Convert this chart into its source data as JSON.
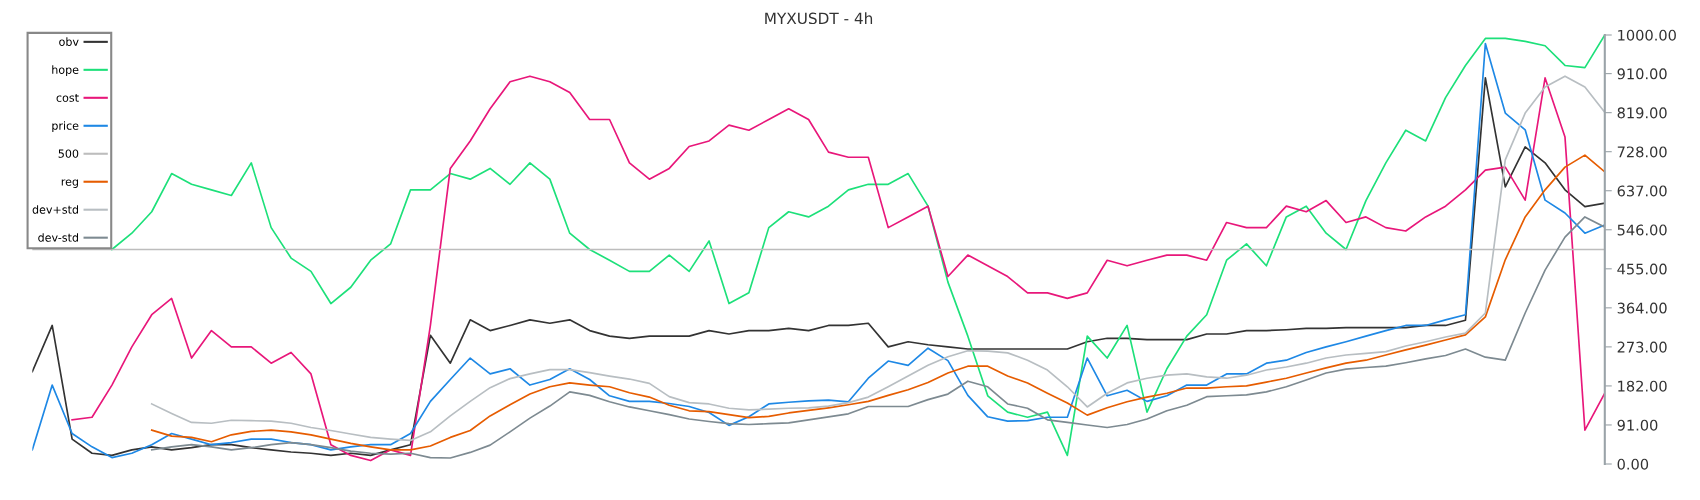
{
  "chart_data": {
    "type": "line",
    "title": "MYXUSDT - 4h",
    "categories": [
      null,
      null,
      null,
      null,
      null,
      null,
      null,
      null,
      null,
      null,
      null,
      null,
      null,
      null,
      null,
      null,
      null,
      null,
      null,
      null,
      null,
      null,
      null,
      null,
      null,
      null,
      null,
      null,
      null,
      null,
      null,
      null,
      null,
      null,
      null,
      null,
      null,
      null,
      null,
      null,
      null,
      null,
      null,
      null,
      null,
      null,
      null,
      null,
      null,
      null,
      null,
      null,
      null,
      null,
      null,
      null,
      null,
      null,
      null,
      null,
      null,
      null,
      null,
      null,
      null,
      null,
      null,
      null,
      null,
      null,
      null,
      null,
      null,
      null,
      null,
      null,
      null,
      null,
      null,
      null
    ],
    "ylim": [
      0,
      1000
    ],
    "yticks": [
      {
        "value": 0,
        "label": "0.00"
      },
      {
        "value": 91,
        "label": "91.00"
      },
      {
        "value": 182,
        "label": "182.00"
      },
      {
        "value": 273,
        "label": "273.00"
      },
      {
        "value": 364,
        "label": "364.00"
      },
      {
        "value": 455,
        "label": "455.00"
      },
      {
        "value": 546,
        "label": "546.00"
      },
      {
        "value": 637,
        "label": "637.00"
      },
      {
        "value": 728,
        "label": "728.00"
      },
      {
        "value": 819,
        "label": "819.00"
      },
      {
        "value": 910,
        "label": "910.00"
      },
      {
        "value": 1000,
        "label": "1000.00"
      }
    ],
    "tick_labels": "y",
    "grid": false,
    "legend": "top left",
    "marker": "none",
    "line_style": "solid",
    "series": [
      {
        "name": "obv",
        "color": "#333333",
        "values": [
          215,
          323,
          58,
          25,
          20,
          33,
          40,
          33,
          38,
          45,
          45,
          38,
          33,
          28,
          25,
          20,
          25,
          20,
          33,
          45,
          300,
          235,
          336,
          311,
          323,
          336,
          328,
          336,
          311,
          298,
          293,
          298,
          298,
          298,
          311,
          303,
          311,
          311,
          316,
          311,
          323,
          323,
          328,
          273,
          285,
          278,
          273,
          268,
          268,
          268,
          268,
          268,
          268,
          285,
          293,
          293,
          290,
          290,
          290,
          303,
          303,
          311,
          311,
          313,
          316,
          316,
          318,
          318,
          318,
          318,
          323,
          323,
          335,
          900,
          646,
          739,
          702,
          639,
          600,
          608
        ]
      },
      {
        "name": "hope",
        "color": "#1de07a",
        "values": [
          null,
          null,
          null,
          null,
          500,
          538,
          588,
          677,
          652,
          639,
          626,
          702,
          551,
          480,
          449,
          374,
          412,
          475,
          513,
          639,
          639,
          677,
          664,
          689,
          652,
          702,
          664,
          538,
          500,
          475,
          449,
          449,
          487,
          449,
          520,
          374,
          399,
          551,
          588,
          576,
          601,
          639,
          652,
          652,
          677,
          601,
          424,
          298,
          159,
          121,
          109,
          121,
          20,
          298,
          247,
          323,
          121,
          222,
          298,
          348,
          475,
          513,
          462,
          576,
          601,
          538,
          500,
          614,
          702,
          778,
          753,
          854,
          929,
          992,
          992,
          985,
          975,
          929,
          924,
          1000
        ]
      },
      {
        "name": "cost",
        "color": "#e8177a",
        "values": [
          null,
          null,
          103,
          109,
          184,
          273,
          348,
          386,
          247,
          311,
          273,
          273,
          235,
          260,
          210,
          45,
          20,
          8,
          33,
          20,
          323,
          689,
          753,
          828,
          891,
          904,
          891,
          866,
          803,
          803,
          702,
          664,
          689,
          740,
          753,
          790,
          778,
          803,
          828,
          803,
          727,
          715,
          715,
          551,
          576,
          601,
          437,
          487,
          462,
          437,
          399,
          399,
          386,
          399,
          475,
          462,
          475,
          487,
          487,
          475,
          563,
          551,
          551,
          601,
          588,
          614,
          563,
          576,
          551,
          543,
          576,
          601,
          639,
          685,
          692,
          615,
          900,
          762,
          79,
          165
        ]
      },
      {
        "name": "price",
        "color": "#1e88e5",
        "values": [
          33,
          184,
          71,
          40,
          15,
          25,
          45,
          71,
          58,
          45,
          50,
          58,
          58,
          50,
          45,
          33,
          40,
          45,
          45,
          71,
          146,
          197,
          247,
          210,
          222,
          184,
          197,
          222,
          197,
          159,
          146,
          146,
          141,
          134,
          120,
          90,
          110,
          140,
          144,
          147,
          149,
          145,
          200,
          240,
          230,
          270,
          241,
          160,
          110,
          100,
          101,
          109,
          109,
          247,
          159,
          172,
          146,
          159,
          184,
          184,
          210,
          210,
          235,
          242,
          260,
          273,
          285,
          298,
          311,
          323,
          323,
          336,
          348,
          980,
          818,
          779,
          615,
          585,
          538,
          557
        ]
      },
      {
        "name": "500",
        "color": "#bdbdbd",
        "values": [
          500,
          500,
          500,
          500,
          500,
          500,
          500,
          500,
          500,
          500,
          500,
          500,
          500,
          500,
          500,
          500,
          500,
          500,
          500,
          500,
          500,
          500,
          500,
          500,
          500,
          500,
          500,
          500,
          500,
          500,
          500,
          500,
          500,
          500,
          500,
          500,
          500,
          500,
          500,
          500,
          500,
          500,
          500,
          500,
          500,
          500,
          500,
          500,
          500,
          500,
          500,
          500,
          500,
          500,
          500,
          500,
          500,
          500,
          500,
          500,
          500,
          500,
          500,
          500,
          500,
          500,
          500,
          500,
          500,
          500,
          500,
          500,
          500,
          500,
          500,
          500,
          500,
          500,
          500,
          500
        ]
      },
      {
        "name": "reg",
        "color": "#e65c00",
        "values": [
          null,
          null,
          null,
          null,
          null,
          null,
          79,
          65,
          62,
          52,
          68,
          76,
          79,
          75,
          68,
          58,
          48,
          40,
          33,
          33,
          42,
          62,
          78,
          112,
          138,
          163,
          180,
          189,
          184,
          180,
          166,
          156,
          137,
          124,
          122,
          115,
          108,
          111,
          119,
          125,
          131,
          138,
          146,
          160,
          173,
          190,
          212,
          228,
          228,
          205,
          189,
          165,
          142,
          114,
          131,
          145,
          156,
          165,
          177,
          177,
          180,
          182,
          191,
          200,
          212,
          224,
          235,
          242,
          254,
          266,
          277,
          289,
          301,
          343,
          476,
          576,
          639,
          692,
          720,
          681
        ]
      },
      {
        "name": "dev+std",
        "color": "#b8bec2",
        "values": [
          null,
          null,
          null,
          null,
          null,
          null,
          140,
          118,
          97,
          95,
          102,
          101,
          100,
          95,
          85,
          78,
          70,
          62,
          58,
          55,
          75,
          112,
          146,
          178,
          199,
          210,
          220,
          220,
          213,
          205,
          198,
          188,
          157,
          143,
          140,
          130,
          126,
          128,
          130,
          131,
          135,
          143,
          156,
          180,
          205,
          230,
          250,
          264,
          263,
          259,
          242,
          219,
          180,
          133,
          165,
          189,
          200,
          207,
          210,
          203,
          200,
          207,
          219,
          226,
          235,
          247,
          254,
          258,
          262,
          275,
          285,
          296,
          305,
          352,
          709,
          818,
          879,
          904,
          879,
          820
        ]
      },
      {
        "name": "dev-std",
        "color": "#7d8a91",
        "values": [
          null,
          null,
          null,
          null,
          null,
          null,
          33,
          40,
          45,
          40,
          33,
          38,
          45,
          50,
          45,
          38,
          30,
          25,
          23,
          25,
          15,
          14,
          27,
          44,
          75,
          107,
          135,
          168,
          160,
          145,
          133,
          124,
          115,
          105,
          99,
          94,
          92,
          94,
          96,
          103,
          110,
          117,
          134,
          134,
          134,
          150,
          163,
          193,
          180,
          140,
          130,
          103,
          97,
          91,
          85,
          92,
          105,
          124,
          137,
          157,
          159,
          161,
          168,
          180,
          196,
          212,
          221,
          225,
          228,
          236,
          245,
          253,
          268,
          249,
          242,
          352,
          452,
          529,
          576,
          552
        ]
      }
    ]
  }
}
